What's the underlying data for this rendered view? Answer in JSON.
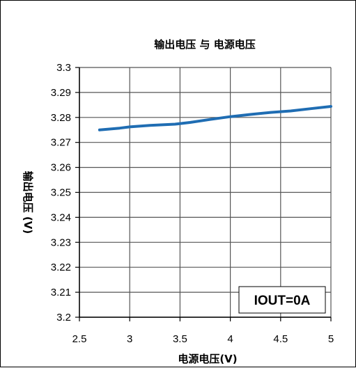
{
  "chart_data": {
    "type": "line",
    "title": "输出电压 与 电源电压",
    "xlabel": "电源电压(V)",
    "ylabel": "输出电压 (V)",
    "xlim": [
      2.5,
      5
    ],
    "ylim": [
      3.2,
      3.3
    ],
    "x_ticks": [
      "2.5",
      "3",
      "3.5",
      "4",
      "4.5",
      "5"
    ],
    "y_ticks": [
      "3.2",
      "3.21",
      "3.22",
      "3.23",
      "3.24",
      "3.25",
      "3.26",
      "3.27",
      "3.28",
      "3.29",
      "3.3"
    ],
    "grid": true,
    "annotation": "IOUT=0A",
    "series": [
      {
        "color": "#1f6db3",
        "x": [
          2.7,
          2.9,
          3.0,
          3.2,
          3.45,
          3.6,
          3.8,
          4.0,
          4.2,
          4.4,
          4.6,
          4.8,
          5.0
        ],
        "y": [
          3.275,
          3.2757,
          3.2762,
          3.2768,
          3.2773,
          3.278,
          3.2792,
          3.2803,
          3.2812,
          3.282,
          3.2826,
          3.2835,
          3.2844
        ]
      }
    ]
  }
}
